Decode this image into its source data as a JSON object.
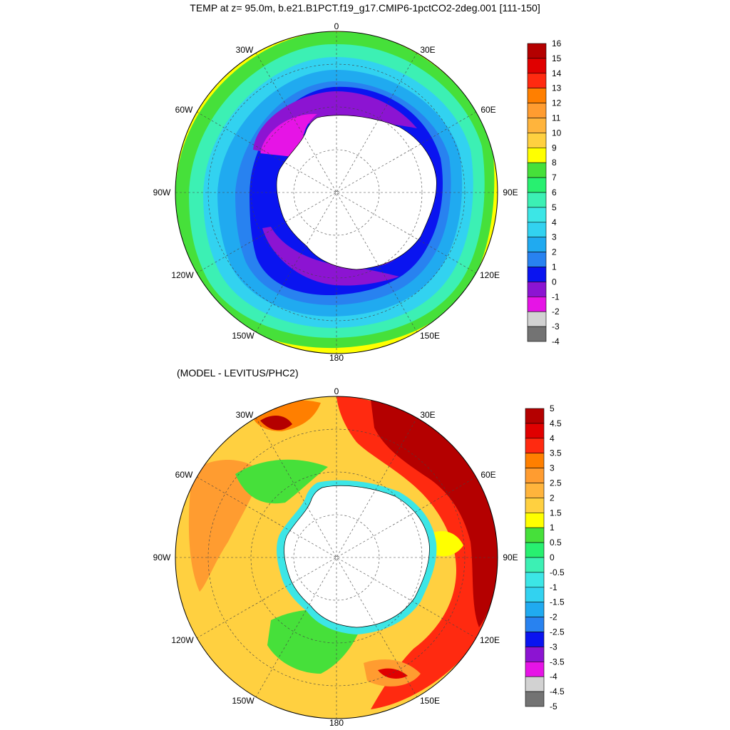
{
  "top_panel": {
    "title": "TEMP at z=  95.0m, b.e21.B1PCT.f19_g17.CMIP6-1pctCO2-2deg.001 [111-150]",
    "longitude_labels": [
      "0",
      "30E",
      "60E",
      "90E",
      "120E",
      "150E",
      "180",
      "150W",
      "120W",
      "90W",
      "60W",
      "30W"
    ],
    "colorbar": {
      "labels": [
        "16",
        "15",
        "14",
        "13",
        "12",
        "11",
        "10",
        "9",
        "8",
        "7",
        "6",
        "5",
        "4",
        "3",
        "2",
        "1",
        "0",
        "-1",
        "-2",
        "-3",
        "-4"
      ],
      "colors": [
        "#b40000",
        "#e00000",
        "#ff2a10",
        "#ff7f00",
        "#ff9c30",
        "#ffb43c",
        "#ffd040",
        "#ffff00",
        "#46e03a",
        "#28f070",
        "#3cf0b4",
        "#3ce6e6",
        "#32d2f0",
        "#20aaf0",
        "#2882f0",
        "#0a14f0",
        "#8c14d2",
        "#e614e6",
        "#d2d2d2",
        "#737373"
      ]
    }
  },
  "bottom_panel": {
    "title": "(MODEL - LEVITUS/PHC2)",
    "longitude_labels": [
      "0",
      "30E",
      "60E",
      "90E",
      "120E",
      "150E",
      "180",
      "150W",
      "120W",
      "90W",
      "60W",
      "30W"
    ],
    "colorbar": {
      "labels": [
        "5",
        "4.5",
        "4",
        "3.5",
        "3",
        "2.5",
        "2",
        "1.5",
        "1",
        "0.5",
        "0",
        "-0.5",
        "-1",
        "-1.5",
        "-2",
        "-2.5",
        "-3",
        "-3.5",
        "-4",
        "-4.5",
        "-5"
      ],
      "colors": [
        "#b40000",
        "#e00000",
        "#ff2a10",
        "#ff7f00",
        "#ff9c30",
        "#ffb43c",
        "#ffd040",
        "#ffff00",
        "#46e03a",
        "#28f070",
        "#3cf0b4",
        "#3ce6e6",
        "#32d2f0",
        "#20aaf0",
        "#2882f0",
        "#0a14f0",
        "#8c14d2",
        "#e614e6",
        "#d2d2d2",
        "#737373"
      ]
    }
  }
}
